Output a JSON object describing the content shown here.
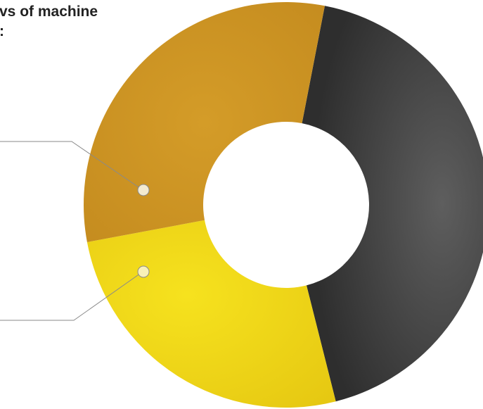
{
  "chart_data": {
    "type": "donut",
    "title_lines": [
      "vs of machine",
      ":"
    ],
    "categories": [
      null,
      null,
      null
    ],
    "values": [
      43,
      26,
      31
    ],
    "colors": [
      "#3c3c3c",
      "#efd415",
      "#cc9422"
    ]
  }
}
